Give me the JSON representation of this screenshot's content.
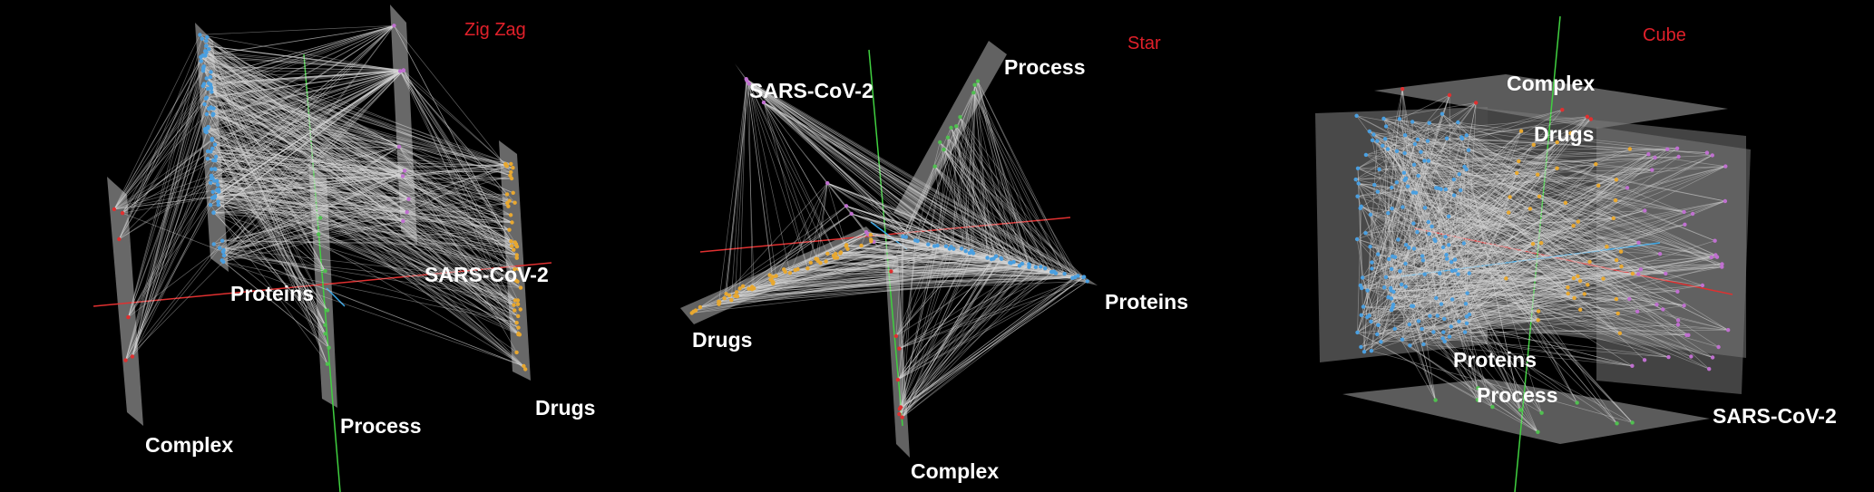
{
  "panels": [
    {
      "title": "Zig Zag",
      "layers": [
        "Complex",
        "Proteins",
        "Process",
        "SARS-CoV-2",
        "Drugs"
      ]
    },
    {
      "title": "Star",
      "layers": [
        "SARS-CoV-2",
        "Process",
        "Drugs",
        "Proteins",
        "Complex"
      ]
    },
    {
      "title": "Cube",
      "layers": [
        "Complex",
        "Drugs",
        "Proteins",
        "Process",
        "SARS-CoV-2"
      ]
    }
  ],
  "colors": {
    "background": "#000000",
    "plane": "#7a7a7a",
    "edge": "#d8d8d8",
    "title": "#e0202a",
    "proteins": "#4a9fe0",
    "drugs": "#e8a830",
    "sars_cov_2": "#c070d0",
    "process": "#50c050",
    "complex": "#e03030",
    "axis_x": "#e03030",
    "axis_y": "#40d040",
    "axis_z": "#3aa8e8"
  }
}
